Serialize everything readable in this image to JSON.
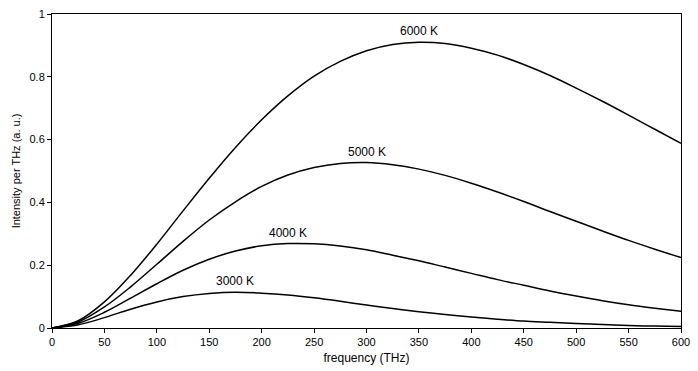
{
  "chart_data": {
    "type": "line",
    "x_label": "frequency (THz)",
    "y_label": "Intensity per THz (a. u.)",
    "x": [
      0,
      25,
      50,
      75,
      100,
      125,
      150,
      175,
      200,
      225,
      250,
      275,
      300,
      325,
      350,
      375,
      400,
      425,
      450,
      475,
      500,
      525,
      550,
      575,
      600
    ],
    "series": [
      {
        "name": "6000 K",
        "color": "#000000",
        "values": [
          0,
          0.023,
          0.083,
          0.168,
          0.267,
          0.373,
          0.477,
          0.575,
          0.663,
          0.739,
          0.802,
          0.849,
          0.883,
          0.903,
          0.91,
          0.906,
          0.891,
          0.869,
          0.839,
          0.804,
          0.764,
          0.722,
          0.678,
          0.633,
          0.588
        ]
      },
      {
        "name": "5000 K",
        "color": "#000000",
        "values": [
          0,
          0.019,
          0.067,
          0.131,
          0.203,
          0.276,
          0.344,
          0.402,
          0.451,
          0.487,
          0.511,
          0.524,
          0.527,
          0.52,
          0.506,
          0.486,
          0.461,
          0.433,
          0.403,
          0.371,
          0.34,
          0.309,
          0.279,
          0.251,
          0.224
        ]
      },
      {
        "name": "4000 K",
        "color": "#000000",
        "values": [
          0,
          0.015,
          0.05,
          0.095,
          0.141,
          0.184,
          0.219,
          0.245,
          0.262,
          0.269,
          0.268,
          0.261,
          0.249,
          0.232,
          0.214,
          0.194,
          0.174,
          0.154,
          0.136,
          0.118,
          0.102,
          0.087,
          0.074,
          0.063,
          0.053
        ]
      },
      {
        "name": "3000 K",
        "color": "#000000",
        "values": [
          0,
          0.01,
          0.033,
          0.06,
          0.083,
          0.1,
          0.11,
          0.114,
          0.111,
          0.105,
          0.096,
          0.085,
          0.073,
          0.062,
          0.052,
          0.043,
          0.035,
          0.028,
          0.022,
          0.018,
          0.014,
          0.011,
          0.008,
          0.006,
          0.005
        ]
      }
    ],
    "xlim": [
      0,
      600
    ],
    "ylim": [
      0,
      1
    ],
    "xticks": [
      0,
      50,
      100,
      150,
      200,
      250,
      300,
      350,
      400,
      450,
      500,
      550,
      600
    ],
    "yticks": [
      0,
      0.2,
      0.4,
      0.6,
      0.8,
      1
    ],
    "grid": false
  }
}
